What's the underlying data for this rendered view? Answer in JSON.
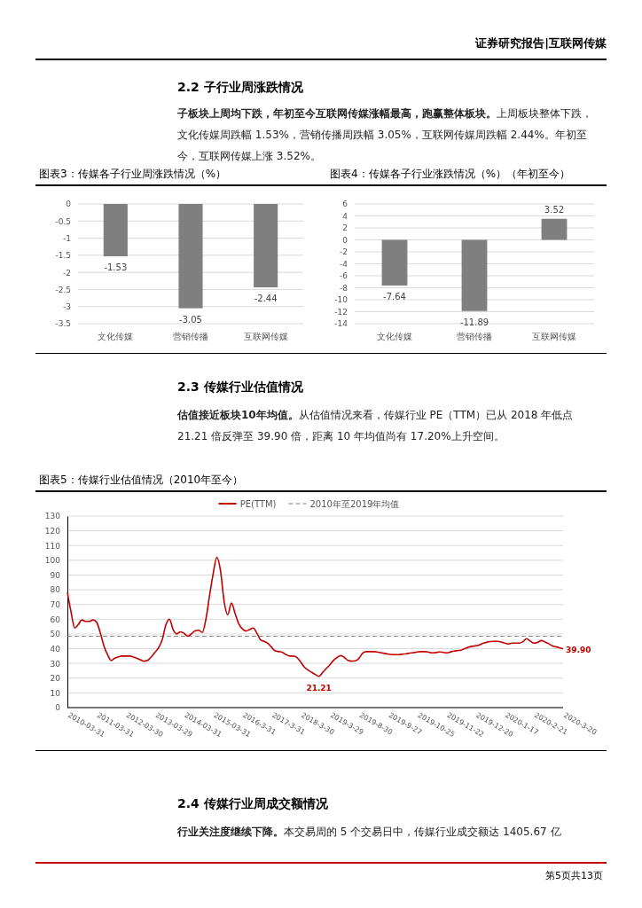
{
  "chart_data": [
    {
      "type": "bar",
      "title": "图表3：传媒各子行业周涨跌情况（%）",
      "annotations": [
        "证券研究报告|互联网传媒",
        "2.2 子行业周涨跌情况",
        "子板块上周均下跌，年初至今互联网传媒涨幅最高，跑赢整体板块。",
        "上周板块整体下跌，文化传媒周跌幅 1.53%，营销传播周跌幅 3.05%，互联网传媒周跌幅 2.44%。年初至今，互联网传媒上涨 3.52%。"
      ],
      "categories": [
        "文化传媒",
        "营销传播",
        "互联网传媒"
      ],
      "values": [
        -1.53,
        -3.05,
        -2.44
      ],
      "color": "#7f7f7f",
      "data_labels": true,
      "ylim": [
        -3.5,
        0
      ],
      "yticks": [
        0,
        -0.5,
        -1,
        -1.5,
        -2,
        -2.5,
        -3,
        -3.5
      ],
      "grid": "y"
    },
    {
      "type": "bar",
      "title": "图表4：传媒各子行业涨跌情况（%）（年初至今）",
      "categories": [
        "文化传媒",
        "营销传播",
        "互联网传媒"
      ],
      "values": [
        -7.64,
        -11.89,
        3.52
      ],
      "color": "#7f7f7f",
      "data_labels": true,
      "ylim": [
        -14,
        6
      ],
      "yticks": [
        6,
        4,
        2,
        0,
        -2,
        -4,
        -6,
        -8,
        -10,
        -12,
        -14
      ],
      "grid": "y"
    },
    {
      "type": "line",
      "title": "图表5：传媒行业估值情况（2010年至今）",
      "annotations": [
        "2.3 传媒行业估值情况",
        "估值接近板块10年均值。",
        "从估值情况来看，传媒行业 PE（TTM）已从 2018 年低点 21.21 倍反弹至 39.90 倍，距离 10 年均值尚有 17.20%上升空间。",
        "2.4 传媒行业周成交额情况",
        "行业关注度继续下降。",
        "本交易周的 5 个交易日中，传媒行业成交额达 1405.67 亿",
        "第5页共13页"
      ],
      "categories": [
        "2010-03-31",
        null,
        null,
        null,
        null,
        null,
        null,
        null,
        "2011-03-31",
        null,
        null,
        null,
        null,
        null,
        null,
        null,
        "2012-03-30",
        null,
        null,
        null,
        null,
        null,
        null,
        null,
        "2013-03-29",
        null,
        null,
        null,
        null,
        null,
        null,
        null,
        "2014-03-31",
        null,
        null,
        null,
        null,
        null,
        null,
        null,
        "2015-03-31",
        null,
        null,
        null,
        null,
        null,
        null,
        null,
        "2016-3-31",
        null,
        null,
        null,
        null,
        null,
        null,
        null,
        "2017-3-31",
        null,
        null,
        null,
        null,
        null,
        null,
        null,
        "2018-3-30",
        null,
        null,
        null,
        null,
        null,
        null,
        null,
        "2019-3-29",
        null,
        null,
        null,
        null,
        null,
        null,
        null,
        "2019-8-30",
        null,
        null,
        null,
        null,
        null,
        null,
        null,
        "2019-9-27",
        null,
        null,
        null,
        null,
        null,
        null,
        null,
        "2019-10-25",
        null,
        null,
        null,
        null,
        null,
        null,
        null,
        "2019-11-22",
        null,
        null,
        null,
        null,
        null,
        null,
        null,
        "2019-12-20",
        null,
        null,
        null,
        null,
        null,
        null,
        null,
        "2020-1-17",
        null,
        null,
        null,
        null,
        null,
        null,
        null,
        "2020-2-21",
        null,
        null,
        null,
        null,
        null,
        null,
        null,
        "2020-3-20"
      ],
      "series": [
        {
          "name": "PE(TTM)",
          "color": "#c00000",
          "values": [
            78,
            65,
            54,
            56.5,
            59.5,
            58.5,
            58.5,
            59.5,
            58,
            51,
            42,
            36,
            32,
            33.5,
            34.5,
            35,
            35,
            35,
            34.5,
            33.5,
            32.5,
            31.5,
            32,
            34.5,
            37.5,
            40.5,
            46,
            56,
            60,
            53,
            50,
            51.5,
            50.5,
            48.5,
            50,
            52,
            52.5,
            51,
            60,
            76,
            91,
            102,
            93,
            72,
            63,
            71,
            64,
            57,
            53.5,
            52,
            53,
            54,
            50.5,
            46,
            45,
            43.5,
            41,
            38.5,
            38,
            37.5,
            36,
            35,
            35,
            34,
            31,
            27.5,
            25.5,
            24,
            22.5,
            21.21,
            23.8,
            26.5,
            29,
            32,
            34,
            35.3,
            34,
            32,
            31.5,
            31.7,
            33.5,
            37,
            38,
            38,
            38,
            37.8,
            37.3,
            36.8,
            36.3,
            36,
            36,
            36,
            36.3,
            36.6,
            37,
            37.3,
            37.8,
            38,
            38,
            37.8,
            37.2,
            37.3,
            37.8,
            37.6,
            37.1,
            37.7,
            38.4,
            38.7,
            39,
            40,
            41,
            41.6,
            41.9,
            42.5,
            43.6,
            44.3,
            44.8,
            45,
            45,
            44.5,
            43.8,
            43.2,
            43.8,
            43.8,
            43.8,
            44.8,
            46.8,
            45.2,
            43.8,
            44.3,
            45.5,
            44.6,
            43.4,
            42,
            41.3,
            40.6,
            39.9
          ],
          "value_labels": [
            null,
            null,
            null,
            null,
            null,
            null,
            null,
            null,
            null,
            null,
            null,
            null,
            null,
            null,
            null,
            null,
            null,
            null,
            null,
            null,
            null,
            null,
            null,
            null,
            null,
            null,
            null,
            null,
            null,
            null,
            null,
            null,
            null,
            null,
            null,
            null,
            null,
            null,
            null,
            null,
            null,
            null,
            null,
            null,
            null,
            null,
            null,
            null,
            null,
            null,
            null,
            null,
            null,
            null,
            null,
            null,
            null,
            null,
            null,
            null,
            null,
            null,
            null,
            null,
            null,
            null,
            null,
            null,
            null,
            "21.21",
            null,
            null,
            null,
            null,
            null,
            null,
            null,
            null,
            null,
            null,
            null,
            null,
            null,
            null,
            null,
            null,
            null,
            null,
            null,
            null,
            null,
            null,
            null,
            null,
            null,
            null,
            null,
            null,
            null,
            null,
            null,
            null,
            null,
            null,
            null,
            null,
            null,
            null,
            null,
            null,
            null,
            null,
            null,
            null,
            null,
            null,
            null,
            null,
            null,
            null,
            null,
            null,
            null,
            null,
            null,
            null,
            null,
            null,
            null,
            null,
            null,
            null,
            null,
            null,
            null,
            null,
            "39.90"
          ]
        }
      ],
      "ref_lines": [
        {
          "axis": "y",
          "value": 48.5,
          "label": "2010年至2019年均值",
          "color": "#7f7f7f",
          "line_style": "dashed"
        }
      ],
      "ylim": [
        0,
        130
      ],
      "yticks": [
        0,
        10,
        20,
        30,
        40,
        50,
        60,
        70,
        80,
        90,
        100,
        110,
        120,
        130
      ],
      "grid": "y",
      "legend": "top"
    }
  ]
}
